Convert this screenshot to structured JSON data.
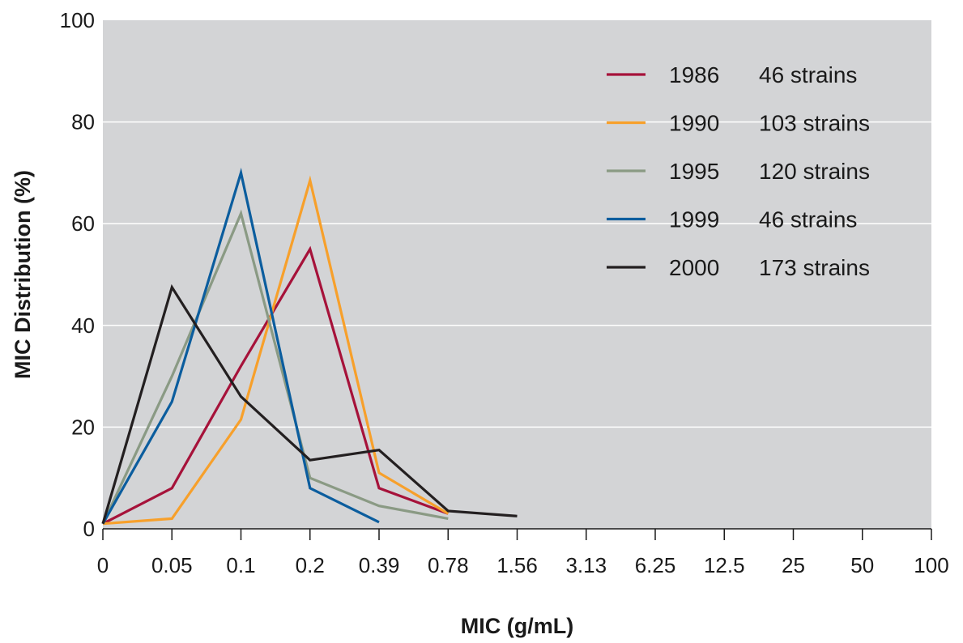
{
  "chart_data": {
    "type": "line",
    "xlabel": "MIC (g/mL)",
    "ylabel": "MIC Distribution (%)",
    "x_categories": [
      "0",
      "0.05",
      "0.1",
      "0.2",
      "0.39",
      "0.78",
      "1.56",
      "3.13",
      "6.25",
      "12.5",
      "25",
      "50",
      "100"
    ],
    "y_ticks": [
      "0",
      "20",
      "40",
      "60",
      "80",
      "100"
    ],
    "ylim": [
      0,
      100
    ],
    "grid": "horizontal",
    "legend_position": "top-right",
    "colors": {
      "plot_background": "#d3d4d6",
      "grid": "#ffffff",
      "axis": "#1a1a1a"
    },
    "series": [
      {
        "name": "1986",
        "strains": "46 strains",
        "color": "#a6123a",
        "x": [
          "0",
          "0.05",
          "0.1",
          "0.2",
          "0.39",
          "0.78"
        ],
        "values": [
          1,
          8,
          32,
          55,
          8,
          3
        ]
      },
      {
        "name": "1990",
        "strains": "103 strains",
        "color": "#f7a02b",
        "x": [
          "0",
          "0.05",
          "0.1",
          "0.2",
          "0.39",
          "0.78"
        ],
        "values": [
          1,
          2,
          21.5,
          68.5,
          11,
          3
        ]
      },
      {
        "name": "1995",
        "strains": "120 strains",
        "color": "#8a9a84",
        "x": [
          "0",
          "0.05",
          "0.1",
          "0.2",
          "0.39",
          "0.78"
        ],
        "values": [
          1,
          30,
          62,
          10,
          4.5,
          2
        ]
      },
      {
        "name": "1999",
        "strains": "46 strains",
        "color": "#0b5d9e",
        "x": [
          "0",
          "0.05",
          "0.1",
          "0.2",
          "0.39"
        ],
        "values": [
          1,
          25,
          70,
          8,
          1.3
        ]
      },
      {
        "name": "2000",
        "strains": "173 strains",
        "color": "#231f20",
        "x": [
          "0",
          "0.05",
          "0.1",
          "0.2",
          "0.39",
          "0.78",
          "1.56"
        ],
        "values": [
          1,
          47.5,
          26,
          13.5,
          15.5,
          3.5,
          2.5
        ]
      }
    ]
  }
}
